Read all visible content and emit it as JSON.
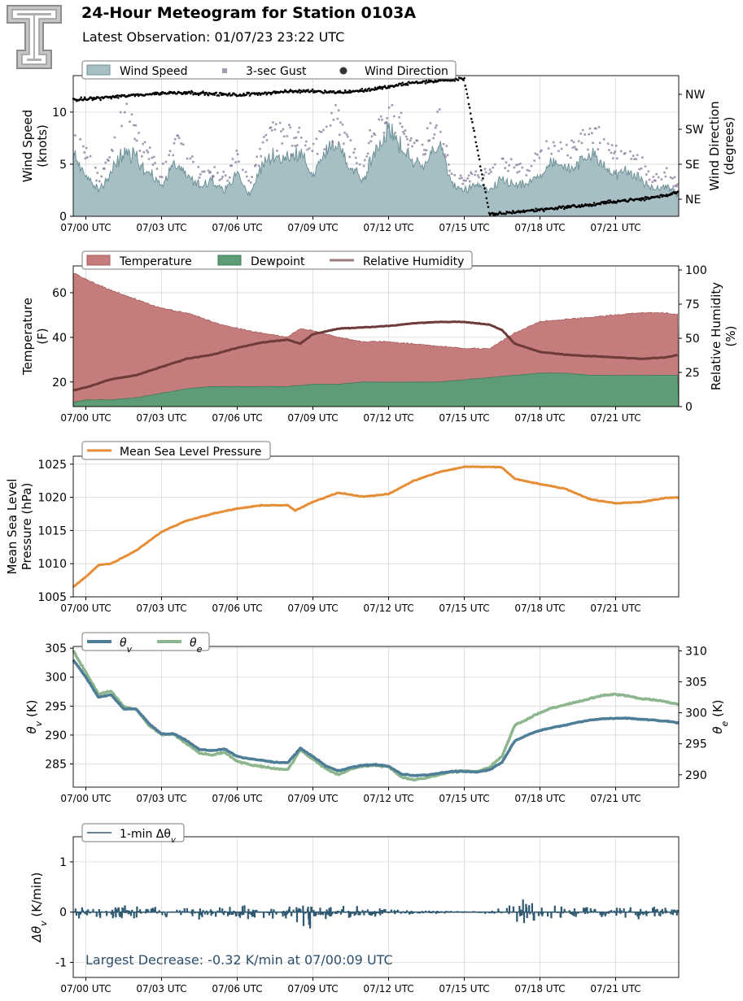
{
  "header": {
    "title": "24-Hour Meteogram for Station 0103A",
    "subtitle": "Latest Observation: 01/07/23 23:22 UTC"
  },
  "colors": {
    "wind_fill": "#a7bfc4",
    "wind_line": "#6f9299",
    "gust": "#7e6f92",
    "direction": "#000000",
    "temperature": "#c47c7c",
    "dewpoint": "#5e9c78",
    "rh": "#9b7f7f",
    "rh_dark": "#6e3a3a",
    "pressure": "#e68e36",
    "theta_v": "#4e7d97",
    "theta_e": "#8db58e",
    "dtheta": "#2f5970",
    "annotation": "#2e4f6a"
  },
  "chart_data": [
    {
      "id": "wind",
      "type": "area",
      "x_tick_labels": [
        "07/00 UTC",
        "07/03 UTC",
        "07/06 UTC",
        "07/09 UTC",
        "07/12 UTC",
        "07/15 UTC",
        "07/18 UTC",
        "07/21 UTC"
      ],
      "ylabel": [
        "Wind Speed",
        "(knots)"
      ],
      "ylim": [
        0,
        13.5
      ],
      "yticks": [
        0,
        5,
        10
      ],
      "y2label": [
        "Wind Direction",
        "(degrees)"
      ],
      "y2ticks": [
        "NE",
        "SE",
        "SW",
        "NW"
      ],
      "legend": [
        "Wind Speed",
        "3-sec Gust",
        "Wind Direction"
      ],
      "series": [
        {
          "name": "Wind Speed",
          "x": [
            -0.5,
            0,
            0.5,
            1,
            1.5,
            2,
            2.5,
            3,
            3.5,
            4,
            4.5,
            5,
            5.5,
            6,
            6.5,
            7,
            7.5,
            8,
            8.5,
            9,
            9.5,
            10,
            10.5,
            11,
            11.5,
            12,
            12.5,
            13,
            13.5,
            14,
            14.5,
            15,
            15.5,
            16,
            16.5,
            17,
            17.5,
            18,
            18.5,
            19,
            19.5,
            20,
            20.5,
            21,
            21.5,
            22,
            22.5,
            23,
            23.5
          ],
          "values": [
            6,
            4,
            2.5,
            4,
            6.5,
            5.5,
            4,
            3,
            5,
            4,
            3,
            3.5,
            2.5,
            4,
            2,
            5,
            6,
            5.5,
            6,
            4,
            6,
            7,
            4.5,
            3.5,
            6.5,
            8,
            6.5,
            5,
            5,
            7,
            3,
            2.5,
            3,
            2.5,
            3.5,
            3,
            3,
            4,
            5,
            4.5,
            5,
            6,
            5,
            4,
            4.5,
            3.5,
            2.5,
            3,
            2
          ]
        },
        {
          "name": "3-sec Gust",
          "x": [
            -0.5,
            0,
            0.5,
            1,
            1.5,
            2,
            2.5,
            3,
            3.5,
            4,
            4.5,
            5,
            5.5,
            6,
            6.5,
            7,
            7.5,
            8,
            8.5,
            9,
            9.5,
            10,
            10.5,
            11,
            11.5,
            12,
            12.5,
            13,
            13.5,
            14,
            14.5,
            15,
            15.5,
            16,
            16.5,
            17,
            17.5,
            18,
            18.5,
            19,
            19.5,
            20,
            20.5,
            21,
            21.5,
            22,
            22.5,
            23,
            23.5
          ],
          "values": [
            8,
            6,
            3.5,
            6,
            9.5,
            8,
            6,
            4,
            7,
            6,
            4,
            4.5,
            3.5,
            6,
            3,
            7,
            8,
            7.5,
            8,
            6,
            8,
            10,
            6.5,
            5,
            8.5,
            10,
            8.5,
            7,
            7,
            9,
            4,
            3.5,
            4,
            4,
            5,
            4.5,
            4.5,
            6,
            7,
            6.5,
            7,
            8,
            7,
            6,
            6.5,
            5,
            3.5,
            4,
            3
          ]
        },
        {
          "name": "Wind Direction",
          "x": [
            -0.5,
            0,
            1,
            2,
            3,
            4,
            5,
            6,
            7,
            8,
            9,
            10,
            11,
            12,
            12.5,
            13,
            14,
            15,
            16,
            17,
            18,
            19,
            20,
            21,
            22,
            23,
            23.5
          ],
          "values_deg": [
            300,
            303,
            308,
            313,
            318,
            320,
            316,
            313,
            318,
            322,
            324,
            320,
            325,
            334,
            340,
            345,
            350,
            355,
            5,
            12,
            18,
            25,
            30,
            40,
            45,
            55,
            65
          ]
        }
      ]
    },
    {
      "id": "thermo",
      "type": "area",
      "x_tick_labels": [
        "07/00 UTC",
        "07/03 UTC",
        "07/06 UTC",
        "07/09 UTC",
        "07/12 UTC",
        "07/15 UTC",
        "07/18 UTC",
        "07/21 UTC"
      ],
      "ylabel": [
        "Temperature",
        "(F)"
      ],
      "ylim": [
        9,
        72
      ],
      "yticks": [
        20,
        40,
        60
      ],
      "y2label": [
        "Relative Humidity",
        "(%)"
      ],
      "y2lim": [
        0,
        103
      ],
      "y2ticks": [
        0,
        25,
        50,
        75,
        100
      ],
      "legend": [
        "Temperature",
        "Dewpoint",
        "Relative Humidity"
      ],
      "series": [
        {
          "name": "Temperature",
          "x": [
            -0.5,
            0,
            1,
            2,
            3,
            4,
            5,
            6,
            7,
            8,
            8.5,
            9,
            10,
            11,
            12,
            13,
            14,
            15,
            16,
            17,
            18,
            19,
            20,
            21,
            22,
            23,
            23.5
          ],
          "values": [
            69,
            66,
            61,
            57,
            53,
            51,
            47,
            44,
            42,
            40,
            44,
            43,
            40,
            38,
            38,
            37,
            36,
            35,
            35,
            42,
            47,
            48,
            49,
            50,
            51,
            51,
            50
          ]
        },
        {
          "name": "Dewpoint",
          "x": [
            -0.5,
            0,
            1,
            2,
            3,
            4,
            5,
            6,
            7,
            8,
            9,
            10,
            11,
            12,
            13,
            14,
            15,
            16,
            17,
            18,
            19,
            20,
            21,
            22,
            23,
            23.5
          ],
          "values": [
            11,
            12,
            12,
            13,
            15,
            17,
            18,
            18,
            18,
            18,
            19,
            19,
            20,
            20,
            20,
            20,
            21,
            22,
            23,
            24,
            24,
            23,
            23,
            23,
            23,
            23
          ]
        },
        {
          "name": "Relative Humidity",
          "x": [
            -0.5,
            0,
            1,
            2,
            3,
            4,
            5,
            6,
            7,
            8,
            8.5,
            9,
            10,
            11,
            12,
            13,
            14,
            15,
            16,
            16.5,
            17,
            18,
            19,
            20,
            21,
            22,
            23,
            23.5
          ],
          "values": [
            12,
            14,
            20,
            23,
            29,
            35,
            38,
            43,
            47,
            49,
            46,
            53,
            57,
            58,
            59,
            61,
            62,
            62,
            60,
            56,
            46,
            40,
            38,
            37,
            36,
            35,
            36,
            38
          ]
        }
      ]
    },
    {
      "id": "pressure",
      "type": "line",
      "x_tick_labels": [
        "07/00 UTC",
        "07/03 UTC",
        "07/06 UTC",
        "07/09 UTC",
        "07/12 UTC",
        "07/15 UTC",
        "07/18 UTC",
        "07/21 UTC"
      ],
      "ylabel": [
        "Mean Sea Level",
        "Pressure (hPa)"
      ],
      "ylim": [
        1005,
        1026.2
      ],
      "yticks": [
        1005,
        1010,
        1015,
        1020,
        1025
      ],
      "legend": [
        "Mean Sea Level Pressure"
      ],
      "series": [
        {
          "name": "Mean Sea Level Pressure",
          "x": [
            -0.5,
            0,
            0.5,
            1,
            2,
            3,
            4,
            5,
            6,
            7,
            8,
            8.3,
            9,
            10,
            11,
            12,
            13,
            14,
            15,
            16,
            16.5,
            17,
            18,
            19,
            20,
            21,
            22,
            23,
            23.5
          ],
          "values": [
            1006.5,
            1008,
            1009.8,
            1010,
            1012,
            1014.8,
            1016.5,
            1017.5,
            1018.3,
            1018.8,
            1018.8,
            1018,
            1019.3,
            1020.7,
            1020.1,
            1020.5,
            1022.5,
            1023.8,
            1024.6,
            1024.6,
            1024.5,
            1022.8,
            1022,
            1021.3,
            1019.7,
            1019.1,
            1019.3,
            1019.9,
            1020
          ]
        }
      ]
    },
    {
      "id": "theta",
      "type": "line",
      "x_tick_labels": [
        "07/00 UTC",
        "07/03 UTC",
        "07/06 UTC",
        "07/09 UTC",
        "07/12 UTC",
        "07/15 UTC",
        "07/18 UTC",
        "07/21 UTC"
      ],
      "ylabel_symbol": "θ",
      "ylabel_sub": "v",
      "ylabel_unit": " (K)",
      "ylim": [
        281,
        305.3
      ],
      "yticks": [
        285,
        290,
        295,
        300,
        305
      ],
      "y2label_symbol": "θ",
      "y2label_sub": "e",
      "y2label_unit": " (K)",
      "y2lim": [
        288,
        310.7
      ],
      "y2ticks": [
        290,
        295,
        300,
        305,
        310
      ],
      "legend_symbol": "θ",
      "legend_subs": [
        "v",
        "e"
      ],
      "series": [
        {
          "name": "θv",
          "x": [
            -0.5,
            0,
            0.5,
            1,
            1.5,
            2,
            2.5,
            3,
            3.5,
            4,
            4.5,
            5,
            5.5,
            6,
            6.5,
            7,
            7.5,
            8,
            8.5,
            9,
            9.5,
            10,
            10.5,
            11,
            11.5,
            12,
            12.5,
            13,
            13.5,
            14,
            14.5,
            15,
            15.5,
            16,
            16.5,
            17,
            17.5,
            18,
            18.5,
            19,
            19.5,
            20,
            20.5,
            21,
            21.5,
            22,
            22.5,
            23,
            23.5
          ],
          "values": [
            303,
            300,
            296.5,
            297,
            294.5,
            294.5,
            292,
            290.2,
            290.2,
            289,
            287.5,
            287.3,
            287.6,
            286.3,
            285.9,
            285.6,
            285.3,
            285.2,
            287.7,
            286.3,
            284.7,
            283.8,
            284.4,
            284.8,
            284.9,
            284.6,
            283.3,
            283.0,
            283.1,
            283.4,
            283.7,
            283.7,
            283.6,
            284.0,
            285.3,
            289.0,
            290.0,
            290.8,
            291.3,
            291.7,
            292.2,
            292.6,
            292.8,
            292.9,
            292.9,
            292.7,
            292.6,
            292.4,
            292.1
          ]
        },
        {
          "name": "θe",
          "x": [
            -0.5,
            0,
            0.5,
            1,
            1.5,
            2,
            2.5,
            3,
            3.5,
            4,
            4.5,
            5,
            5.5,
            6,
            6.5,
            7,
            7.5,
            8,
            8.5,
            9,
            9.5,
            10,
            10.5,
            11,
            11.5,
            12,
            12.5,
            13,
            13.5,
            14,
            14.5,
            15,
            15.5,
            16,
            16.5,
            17,
            17.5,
            18,
            18.5,
            19,
            19.5,
            20,
            20.5,
            21,
            21.5,
            22,
            22.5,
            23,
            23.5
          ],
          "values": [
            310,
            306.5,
            303,
            303.5,
            301,
            300.5,
            298,
            296.5,
            296.5,
            295,
            293.5,
            293.2,
            293.6,
            292.2,
            291.6,
            291.3,
            291.0,
            290.8,
            294.0,
            292.5,
            291.0,
            290.0,
            290.9,
            291.4,
            291.5,
            291.3,
            289.6,
            289.2,
            289.5,
            290.0,
            290.5,
            290.6,
            290.5,
            291.2,
            293.0,
            298.0,
            299.0,
            300.0,
            300.8,
            301.3,
            301.8,
            302.3,
            302.8,
            303.0,
            302.7,
            302.3,
            302.1,
            301.8,
            301.3
          ]
        }
      ]
    },
    {
      "id": "dtheta",
      "type": "line",
      "x_tick_labels": [
        "07/00 UTC",
        "07/03 UTC",
        "07/06 UTC",
        "07/09 UTC",
        "07/12 UTC",
        "07/15 UTC",
        "07/18 UTC",
        "07/21 UTC"
      ],
      "ylabel_symbol": "Δθ",
      "ylabel_sub": "v",
      "ylabel_unit": " (K/min)",
      "ylim": [
        -1.3,
        1.5
      ],
      "yticks": [
        -1,
        0,
        1
      ],
      "legend_prefix": "1-min Δθ",
      "legend_sub": "v",
      "annotation": "Largest Decrease: -0.32 K/min at 07/00:09 UTC",
      "series": [
        {
          "name": "1-min Δθv",
          "x": [
            -0.5,
            0,
            1,
            2,
            3,
            4,
            5,
            6,
            7,
            8,
            8.5,
            8.8,
            9,
            10,
            11,
            12,
            13,
            14,
            15,
            16,
            16.5,
            17,
            18,
            19,
            20,
            21,
            22,
            23,
            23.5
          ],
          "amplitude": [
            0.1,
            0.12,
            0.15,
            0.12,
            0.1,
            0.1,
            0.12,
            0.13,
            0.14,
            0.15,
            0.25,
            0.5,
            0.15,
            0.1,
            0.1,
            0.06,
            0.03,
            0.02,
            0.02,
            0.04,
            0.08,
            0.2,
            0.2,
            0.15,
            0.15,
            0.12,
            0.1,
            0.1,
            0.08
          ]
        }
      ]
    }
  ]
}
